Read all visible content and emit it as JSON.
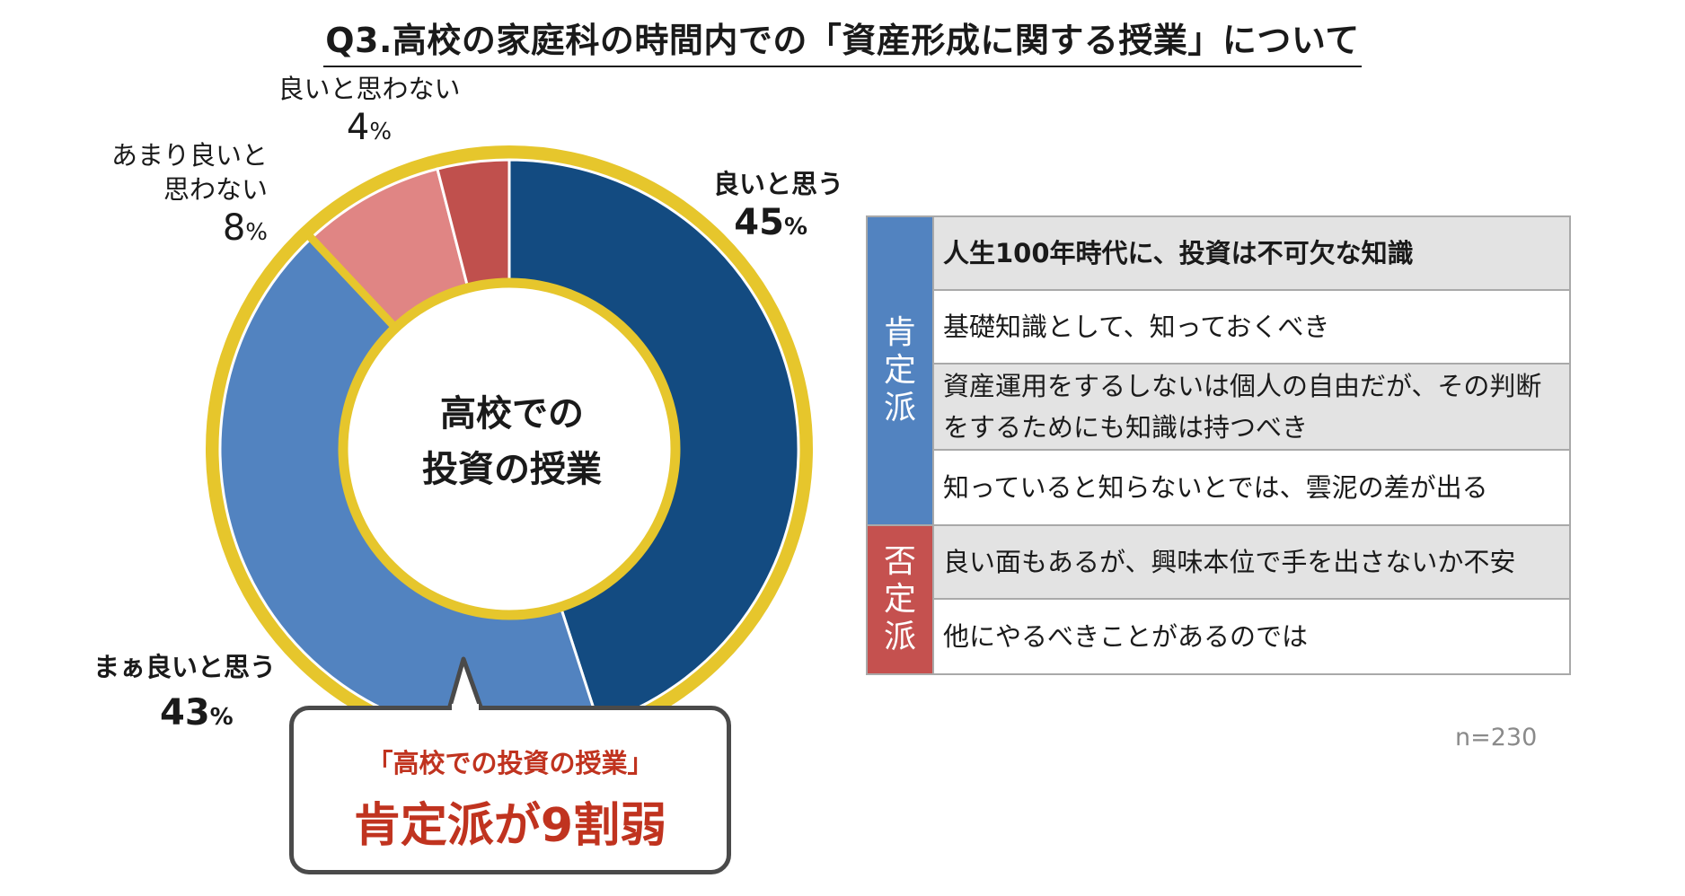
{
  "title": "Q3.高校の家庭科の時間内での「資産形成に関する授業」について",
  "chart_data": {
    "type": "pie",
    "categories": [
      "良いと思う",
      "まぁ良いと思う",
      "あまり良いと思わない",
      "良いと思わない"
    ],
    "values": [
      45,
      43,
      8,
      4
    ],
    "center_label": [
      "高校での",
      "投資の授業"
    ],
    "colors": [
      "#134b81",
      "#5283c0",
      "#e08584",
      "#c0504d"
    ],
    "ring_color": "#e6c62c"
  },
  "labels": {
    "good": {
      "name": "良いと思う",
      "pct": "45"
    },
    "somewhat_good": {
      "name": "まぁ良いと思う",
      "pct": "43"
    },
    "not_very_good": {
      "line1": "あまり良いと",
      "line2": "思わない",
      "pct": "8"
    },
    "not_good": {
      "name": "良いと思わない",
      "pct": "4"
    },
    "pct_unit": "%"
  },
  "callout": {
    "line1": "「高校での投資の授業」",
    "line2": "肯定派が9割弱"
  },
  "table": {
    "positive_label": "肯定派",
    "negative_label": "否定派",
    "positive_rows": [
      "人生100年時代に、投資は不可欠な知識",
      "基礎知識として、知っておくべき",
      "資産運用をするしないは個人の自由だが、その判断をするためにも知識は持つべき",
      "知っていると知らないとでは、雲泥の差が出る"
    ],
    "negative_rows": [
      "良い面もあるが、興味本位で手を出さないか不安",
      "他にやるべきことがあるのでは"
    ]
  },
  "sample_size": "n=230"
}
